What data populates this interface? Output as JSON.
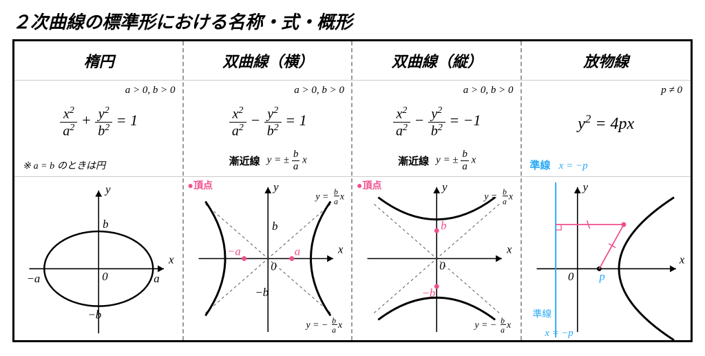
{
  "title": "２次曲線の標準形における名称・式・概形",
  "colors": {
    "border": "#000000",
    "dash": "#999999",
    "axis": "#000000",
    "curve": "#000000",
    "accent": "#f04f8d",
    "blue": "#2aa9f7",
    "text": "#000000"
  },
  "columns": [
    {
      "key": "ellipse",
      "header": "楕円",
      "condition": "a > 0, b > 0",
      "equation_html": "<span class='frac'><span class='num'>x<span class='sup'>2</span></span><span class='den'>a<span class='sup'>2</span></span></span> + <span class='frac'><span class='num'>y<span class='sup'>2</span></span><span class='den'>b<span class='sup'>2</span></span></span> = 1",
      "note_prefix": "※ ",
      "note_expr": "a = b",
      "note_suffix": " のときは円"
    },
    {
      "key": "hyperbola_h",
      "header": "双曲線（横）",
      "condition": "a > 0, b > 0",
      "equation_html": "<span class='frac'><span class='num'>x<span class='sup'>2</span></span><span class='den'>a<span class='sup'>2</span></span></span> − <span class='frac'><span class='num'>y<span class='sup'>2</span></span><span class='den'>b<span class='sup'>2</span></span></span> = 1",
      "asymptote_label": "漸近線",
      "asymptote_html": "y = ± <span class='frac smallfrac'><span class='num'>b</span><span class='den'>a</span></span> x",
      "vertex_label": "●頂点"
    },
    {
      "key": "hyperbola_v",
      "header": "双曲線（縦）",
      "condition": "a > 0, b > 0",
      "equation_html": "<span class='frac'><span class='num'>x<span class='sup'>2</span></span><span class='den'>a<span class='sup'>2</span></span></span> − <span class='frac'><span class='num'>y<span class='sup'>2</span></span><span class='den'>b<span class='sup'>2</span></span></span> = −1",
      "asymptote_label": "漸近線",
      "asymptote_html": "y = ± <span class='frac smallfrac'><span class='num'>b</span><span class='den'>a</span></span> x",
      "vertex_label": "●頂点"
    },
    {
      "key": "parabola",
      "header": "放物線",
      "condition": "p ≠ 0",
      "equation_html": "y<span class='sup'>2</span> = 4px",
      "directrix_label": "準線",
      "directrix_eq": "x = −p"
    }
  ],
  "graph_labels": {
    "x": "x",
    "y": "y",
    "O": "0",
    "a": "a",
    "neg_a": "−a",
    "b": "b",
    "neg_b": "−b",
    "p": "p",
    "asym_pos": "y = (b/a) x",
    "asym_neg": "y = −(b/a) x",
    "dir_top_label": "準線",
    "dir_bot_eq": "x = −p"
  }
}
